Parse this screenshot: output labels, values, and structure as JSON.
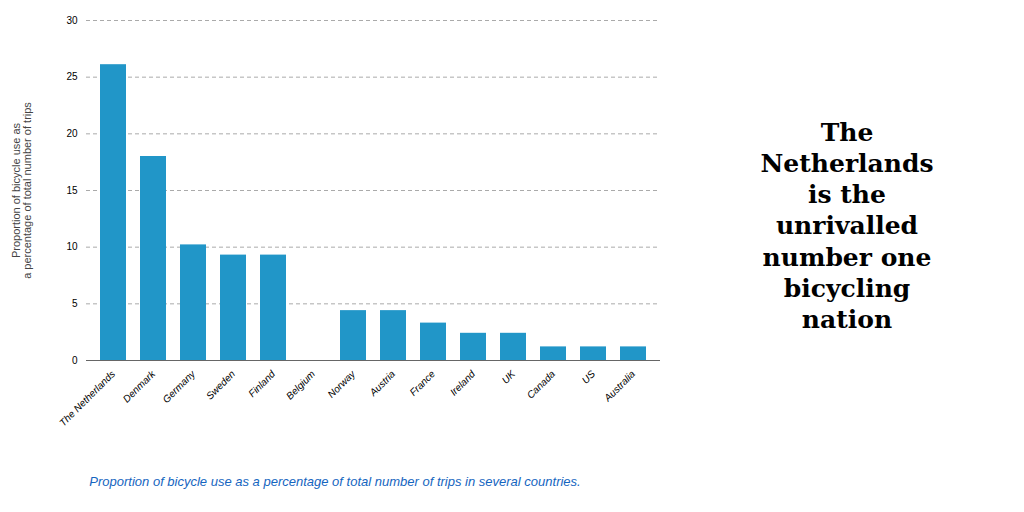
{
  "chart_data": {
    "type": "bar",
    "title": "The\nNetherlands\nis the\nunrivalled\nnumber one\nbicycling\nnation",
    "ylabel": "Proportion of bicycle use as\na percentage of total number of trips",
    "caption": "Proportion of bicycle use as a percentage of total number of trips in several countries.",
    "categories": [
      "The Netherlands",
      "Denmark",
      "Germany",
      "Sweden",
      "Finland",
      "Belgium",
      "Norway",
      "Austria",
      "France",
      "Ireland",
      "UK",
      "Canada",
      "US",
      "Australia"
    ],
    "values": [
      26.1,
      18.0,
      10.2,
      9.3,
      9.3,
      0.0,
      4.4,
      4.4,
      3.3,
      2.4,
      2.4,
      1.2,
      1.2,
      1.2
    ],
    "color": "#2196C8",
    "ylim": [
      0,
      30
    ],
    "yticks": [
      0,
      5,
      10,
      15,
      20,
      25,
      30
    ],
    "grid": true
  }
}
